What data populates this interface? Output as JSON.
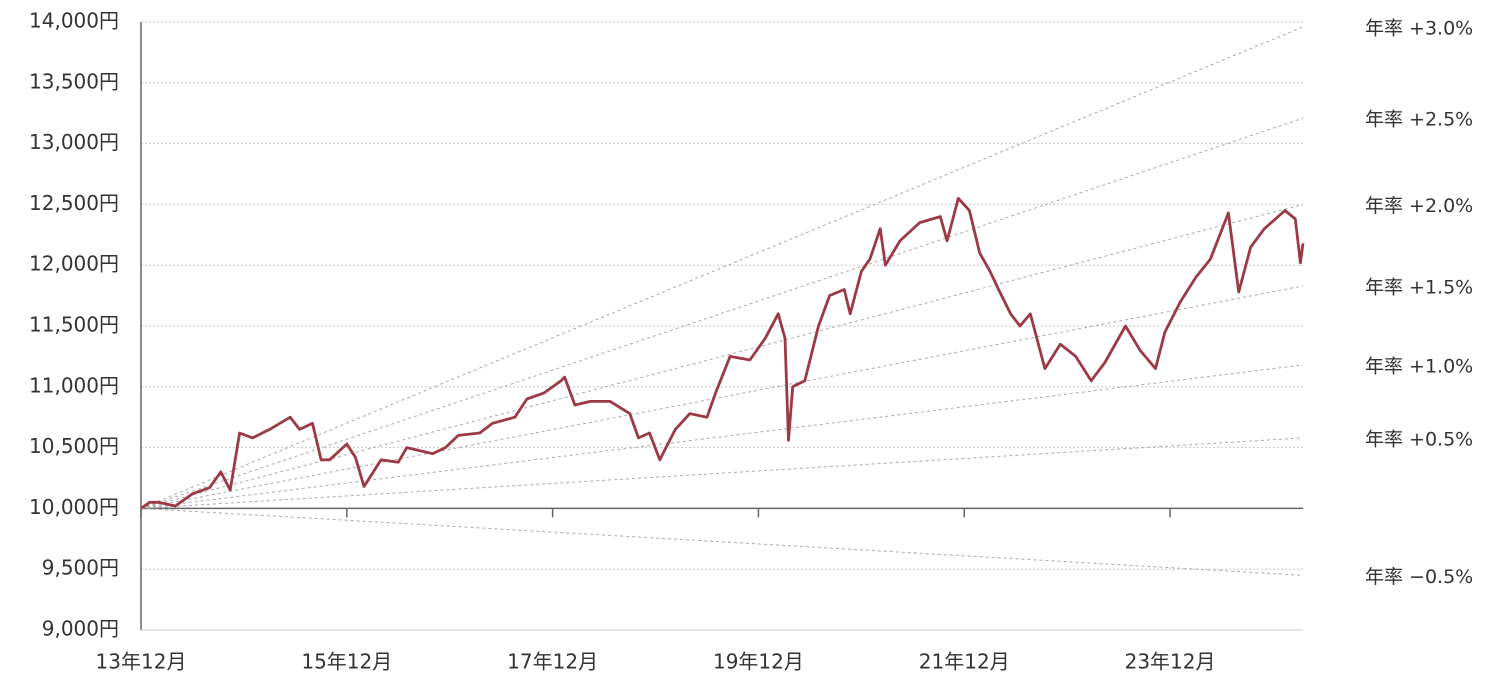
{
  "chart_data": {
    "type": "line",
    "x": [
      0,
      1,
      2,
      4,
      6,
      8,
      9.3,
      10.4,
      11.5,
      13,
      15,
      17.4,
      18.5,
      20,
      21,
      22,
      24,
      25,
      26,
      28,
      30,
      31,
      34,
      35.5,
      37,
      39.5,
      41,
      43.6,
      45,
      47,
      49,
      49.4,
      50.6,
      52.4,
      54.7,
      57,
      58,
      59.3,
      60.5,
      62.3,
      64,
      66,
      67,
      68.7,
      71,
      72.8,
      74.3,
      75.1,
      75.5,
      76,
      77.4,
      79,
      80.3,
      82,
      82.7,
      84,
      85,
      86.2,
      86.8,
      88.5,
      90.8,
      93.2,
      94,
      95.3,
      96.6,
      97.8,
      99,
      100,
      101.4,
      102.5,
      103.7,
      105.4,
      107.2,
      109,
      110.8,
      112.4,
      114.8,
      116.5,
      118.3,
      119.4,
      121.2,
      123,
      124.7,
      126.8,
      128,
      129.4,
      131,
      133.4,
      134.6,
      135.2,
      135.5
    ],
    "series": [
      {
        "color": "#9b3a44",
        "values": [
          10000,
          10050,
          10050,
          10020,
          10120,
          10170,
          10300,
          10150,
          10620,
          10580,
          10650,
          10750,
          10650,
          10700,
          10400,
          10400,
          10530,
          10420,
          10180,
          10400,
          10380,
          10500,
          10450,
          10500,
          10600,
          10620,
          10700,
          10750,
          10900,
          10950,
          11050,
          11080,
          10850,
          10880,
          10880,
          10780,
          10580,
          10620,
          10400,
          10650,
          10780,
          10750,
          10950,
          11250,
          11220,
          11400,
          11600,
          11400,
          10560,
          11000,
          11050,
          11500,
          11750,
          11800,
          11600,
          11950,
          12050,
          12300,
          12000,
          12200,
          12350,
          12400,
          12200,
          12550,
          12450,
          12100,
          11950,
          11800,
          11600,
          11500,
          11600,
          11150,
          11350,
          11250,
          11050,
          11200,
          11500,
          11300,
          11150,
          11450,
          11700,
          11900,
          12050,
          12430,
          11780,
          12150,
          12300,
          12450,
          12380,
          12020,
          12180
        ]
      }
    ],
    "reference_lines": [
      {
        "name": "年率 +3.0%",
        "x": [
          0,
          135.5
        ],
        "values": [
          10000,
          13960
        ]
      },
      {
        "name": "年率 +2.5%",
        "x": [
          0,
          135.5
        ],
        "values": [
          10000,
          13210
        ]
      },
      {
        "name": "年率 +2.0%",
        "x": [
          0,
          135.5
        ],
        "values": [
          10000,
          12500
        ]
      },
      {
        "name": "年率 +1.5%",
        "x": [
          0,
          135.5
        ],
        "values": [
          10000,
          11830
        ]
      },
      {
        "name": "年率 +1.0%",
        "x": [
          0,
          135.5
        ],
        "values": [
          10000,
          11180
        ]
      },
      {
        "name": "年率 +0.5%",
        "x": [
          0,
          135.5
        ],
        "values": [
          10000,
          10580
        ]
      },
      {
        "name": "年率 −0.5%",
        "x": [
          0,
          135.5
        ],
        "values": [
          10000,
          9450
        ]
      }
    ],
    "reference_color": "#aaaaaa",
    "xlim": [
      0,
      135.5
    ],
    "xticks": [
      {
        "value": 0,
        "label": "13年12月"
      },
      {
        "value": 24,
        "label": "15年12月"
      },
      {
        "value": 48,
        "label": "17年12月"
      },
      {
        "value": 72,
        "label": "19年12月"
      },
      {
        "value": 96,
        "label": "21年12月"
      },
      {
        "value": 120,
        "label": "23年12月"
      }
    ],
    "xaxis_crosses": 10000,
    "ylim": [
      9000,
      14000
    ],
    "yticks": [
      {
        "value": 9000,
        "label": "9,000円"
      },
      {
        "value": 9500,
        "label": "9,500円"
      },
      {
        "value": 10000,
        "label": "10,000円"
      },
      {
        "value": 10500,
        "label": "10,500円"
      },
      {
        "value": 11000,
        "label": "11,000円"
      },
      {
        "value": 11500,
        "label": "11,500円"
      },
      {
        "value": 12000,
        "label": "12,000円"
      },
      {
        "value": 12500,
        "label": "12,500円"
      },
      {
        "value": 13000,
        "label": "13,000円"
      },
      {
        "value": 13500,
        "label": "13,500円"
      },
      {
        "value": 14000,
        "label": "14,000円"
      }
    ],
    "grid": true
  }
}
